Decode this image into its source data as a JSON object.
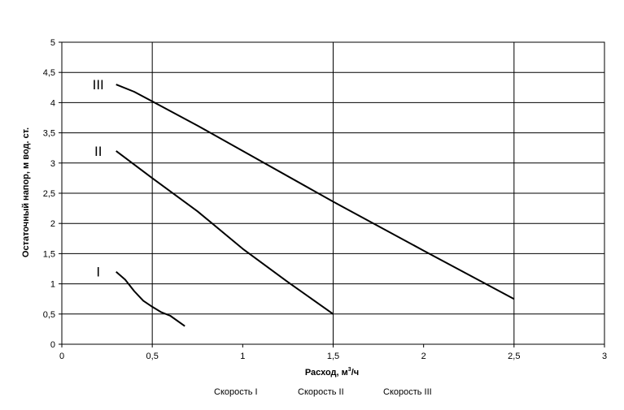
{
  "chart_data": {
    "type": "line",
    "title": "",
    "xlabel_main": "Расход, м",
    "xlabel_sup": "3",
    "xlabel_tail": "/ч",
    "ylabel": "Остаточный напор, м вод. ст.",
    "xlim": [
      0,
      3
    ],
    "ylim": [
      0,
      5
    ],
    "x_ticks": [
      "0",
      "0,5",
      "1",
      "1,5",
      "2",
      "2,5",
      "3"
    ],
    "y_ticks": [
      "0",
      "0,5",
      "1",
      "1,5",
      "2",
      "2,5",
      "3",
      "3,5",
      "4",
      "4,5",
      "5"
    ],
    "grid": true,
    "legend_position": "bottom",
    "series": [
      {
        "name": "Скорость I",
        "curve_label": "I",
        "color": "#000000",
        "x": [
          0.3,
          0.35,
          0.4,
          0.45,
          0.5,
          0.55,
          0.6,
          0.68
        ],
        "y": [
          1.2,
          1.07,
          0.88,
          0.72,
          0.62,
          0.53,
          0.47,
          0.3
        ]
      },
      {
        "name": "Скорость II",
        "curve_label": "II",
        "color": "#000000",
        "x": [
          0.3,
          0.5,
          0.75,
          1.0,
          1.25,
          1.5
        ],
        "y": [
          3.2,
          2.75,
          2.2,
          1.58,
          1.03,
          0.5
        ]
      },
      {
        "name": "Скорость III",
        "curve_label": "III",
        "color": "#000000",
        "x": [
          0.3,
          0.4,
          0.5,
          0.75,
          1.0,
          1.5,
          2.0,
          2.5
        ],
        "y": [
          4.3,
          4.18,
          4.02,
          3.62,
          3.2,
          2.36,
          1.55,
          0.75
        ]
      }
    ]
  }
}
